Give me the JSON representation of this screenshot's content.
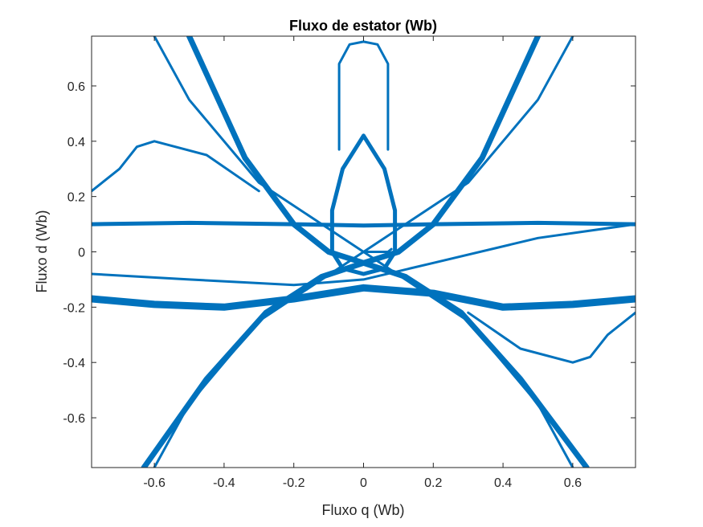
{
  "chart_data": {
    "type": "line",
    "title": "Fluxo de estator (Wb)",
    "xlabel": "Fluxo q (Wb)",
    "ylabel": "Fluxo d (Wb)",
    "xlim": [
      -0.78,
      0.78
    ],
    "ylim": [
      -0.78,
      0.78
    ],
    "xticks": [
      -0.6,
      -0.4,
      -0.2,
      0,
      0.2,
      0.4,
      0.6
    ],
    "xtick_labels": [
      "-0.6",
      "-0.4",
      "-0.2",
      "0",
      "0.2",
      "0.4",
      "0.6"
    ],
    "yticks": [
      -0.6,
      -0.4,
      -0.2,
      0,
      0.2,
      0.4,
      0.6
    ],
    "ytick_labels": [
      "-0.6",
      "-0.4",
      "-0.2",
      "0",
      "0.2",
      "0.4",
      "0.6"
    ],
    "grid": false,
    "color": "#0072BD",
    "series": [
      {
        "x": [
          -0.63,
          -0.45,
          -0.28,
          -0.12,
          0.0,
          0.1,
          0.2,
          0.34,
          0.5
        ],
        "y": [
          -0.78,
          -0.46,
          -0.22,
          -0.09,
          -0.04,
          0.0,
          0.1,
          0.34,
          0.78
        ]
      },
      {
        "x": [
          0.64,
          0.45,
          0.28,
          0.12,
          0.0,
          -0.1,
          -0.2,
          -0.34,
          -0.5
        ],
        "y": [
          -0.78,
          -0.46,
          -0.22,
          -0.09,
          -0.04,
          0.0,
          0.1,
          0.34,
          0.78
        ]
      },
      {
        "x": [
          -0.78,
          -0.6,
          -0.4,
          -0.2,
          0.0,
          0.2,
          0.4,
          0.6,
          0.78
        ],
        "y": [
          -0.17,
          -0.19,
          -0.2,
          -0.17,
          -0.13,
          -0.15,
          -0.2,
          -0.19,
          -0.17
        ]
      },
      {
        "x": [
          -0.78,
          -0.5,
          -0.2,
          0.0,
          0.2,
          0.5,
          0.78
        ],
        "y": [
          0.1,
          0.105,
          0.1,
          0.095,
          0.1,
          0.105,
          0.1
        ]
      },
      {
        "x": [
          0.0,
          0.06,
          0.09,
          0.09,
          0.06,
          0.0,
          -0.06,
          -0.09,
          -0.09,
          -0.06,
          0.0
        ],
        "y": [
          0.42,
          0.3,
          0.15,
          0.0,
          -0.06,
          -0.08,
          -0.06,
          0.0,
          0.15,
          0.3,
          0.42
        ]
      },
      {
        "x": [
          -0.07,
          -0.07,
          -0.04,
          0.0,
          0.04,
          0.07,
          0.07
        ],
        "y": [
          0.37,
          0.68,
          0.75,
          0.76,
          0.75,
          0.68,
          0.37
        ]
      },
      {
        "x": [
          -0.6,
          -0.5,
          -0.3,
          0.0,
          0.3,
          0.5,
          0.6
        ],
        "y": [
          0.78,
          0.55,
          0.25,
          0.0,
          -0.25,
          -0.55,
          -0.78
        ]
      },
      {
        "x": [
          0.6,
          0.5,
          0.3,
          0.0,
          -0.3,
          -0.5,
          -0.6
        ],
        "y": [
          0.78,
          0.55,
          0.25,
          0.0,
          -0.25,
          -0.55,
          -0.78
        ]
      },
      {
        "x": [
          -0.78,
          -0.7,
          -0.65,
          -0.6,
          -0.45,
          -0.3
        ],
        "y": [
          0.22,
          0.3,
          0.38,
          0.4,
          0.35,
          0.22
        ]
      },
      {
        "x": [
          0.78,
          0.7,
          0.65,
          0.6,
          0.45,
          0.3
        ],
        "y": [
          -0.22,
          -0.3,
          -0.38,
          -0.4,
          -0.35,
          -0.22
        ]
      },
      {
        "x": [
          -0.78,
          -0.5,
          -0.2,
          0.0,
          0.2,
          0.5,
          0.78
        ],
        "y": [
          -0.08,
          -0.1,
          -0.12,
          -0.1,
          -0.04,
          0.05,
          0.1
        ]
      },
      {
        "x": [
          0.0,
          0.07,
          0.08
        ],
        "y": [
          0.0,
          0.0,
          0.01
        ]
      }
    ]
  }
}
